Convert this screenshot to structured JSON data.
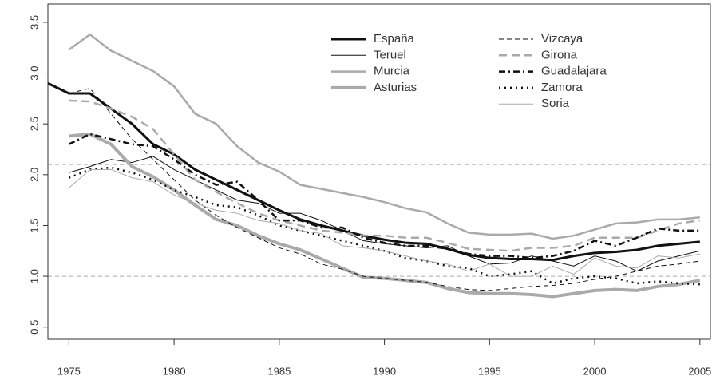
{
  "chart_data": {
    "type": "line",
    "x": [
      1974,
      1975,
      1976,
      1977,
      1978,
      1979,
      1980,
      1981,
      1982,
      1983,
      1984,
      1985,
      1986,
      1987,
      1988,
      1989,
      1990,
      1991,
      1992,
      1993,
      1994,
      1995,
      1996,
      1997,
      1998,
      1999,
      2000,
      2001,
      2002,
      2003,
      2004,
      2005
    ],
    "xlim": [
      1974,
      2005.5
    ],
    "xticks": [
      1975,
      1980,
      1985,
      1990,
      1995,
      2000,
      2005
    ],
    "ylim": [
      0.38,
      3.68
    ],
    "yticks": [
      {
        "value": 0.5,
        "label": "0.5"
      },
      {
        "value": 1,
        "label": "1.0"
      },
      {
        "value": 1.5,
        "label": "1.5"
      },
      {
        "value": 2,
        "label": "2.0"
      },
      {
        "value": 2.5,
        "label": "2.5"
      },
      {
        "value": 3,
        "label": "3.0"
      },
      {
        "value": 3.5,
        "label": "3.5"
      }
    ],
    "reference_lines": [
      1.0,
      2.1
    ],
    "series": [
      {
        "name": "España",
        "color": "#111111",
        "width": 3,
        "dash": "none",
        "values": [
          2.9,
          2.8,
          2.8,
          2.65,
          2.5,
          2.3,
          2.2,
          2.05,
          1.95,
          1.85,
          1.75,
          1.65,
          1.56,
          1.5,
          1.45,
          1.4,
          1.36,
          1.33,
          1.32,
          1.27,
          1.21,
          1.18,
          1.17,
          1.17,
          1.16,
          1.2,
          1.23,
          1.24,
          1.26,
          1.3,
          1.32,
          1.34
        ]
      },
      {
        "name": "Teruel",
        "color": "#111111",
        "width": 1,
        "dash": "none",
        "values": [
          null,
          2.02,
          2.08,
          2.15,
          2.12,
          2.18,
          2.05,
          1.95,
          1.85,
          1.75,
          1.72,
          1.62,
          1.62,
          1.55,
          1.45,
          1.35,
          1.32,
          1.3,
          1.28,
          1.3,
          1.2,
          1.12,
          1.13,
          1.2,
          1.15,
          1.1,
          1.2,
          1.15,
          1.05,
          1.15,
          1.2,
          1.25
        ]
      },
      {
        "name": "Murcia",
        "color": "#aaaaaa",
        "width": 2.5,
        "dash": "none",
        "values": [
          null,
          3.23,
          3.38,
          3.22,
          3.12,
          3.02,
          2.87,
          2.6,
          2.5,
          2.28,
          2.12,
          2.03,
          1.9,
          1.86,
          1.82,
          1.78,
          1.73,
          1.67,
          1.63,
          1.52,
          1.43,
          1.41,
          1.41,
          1.42,
          1.37,
          1.4,
          1.46,
          1.52,
          1.53,
          1.56,
          1.56,
          1.58
        ]
      },
      {
        "name": "Asturias",
        "color": "#aaaaaa",
        "width": 4,
        "dash": "none",
        "values": [
          null,
          2.38,
          2.4,
          2.3,
          2.08,
          1.98,
          1.85,
          1.7,
          1.56,
          1.5,
          1.4,
          1.32,
          1.26,
          1.17,
          1.08,
          0.99,
          0.98,
          0.96,
          0.94,
          0.88,
          0.84,
          0.83,
          0.83,
          0.82,
          0.8,
          0.83,
          0.86,
          0.87,
          0.86,
          0.9,
          0.92,
          0.96
        ]
      },
      {
        "name": "Vizcaya",
        "color": "#111111",
        "width": 1,
        "dash": "6,4",
        "values": [
          null,
          2.8,
          2.85,
          2.6,
          2.35,
          2.15,
          1.95,
          1.75,
          1.6,
          1.48,
          1.38,
          1.28,
          1.22,
          1.12,
          1.07,
          1.0,
          0.98,
          0.96,
          0.94,
          0.9,
          0.87,
          0.86,
          0.88,
          0.9,
          0.91,
          0.93,
          0.97,
          1.0,
          1.05,
          1.1,
          1.12,
          1.15
        ]
      },
      {
        "name": "Girona",
        "color": "#aaaaaa",
        "width": 2.5,
        "dash": "10,6",
        "values": [
          null,
          2.73,
          2.72,
          2.65,
          2.57,
          2.45,
          2.2,
          1.95,
          1.83,
          1.72,
          1.62,
          1.55,
          1.5,
          1.45,
          1.43,
          1.4,
          1.4,
          1.38,
          1.38,
          1.33,
          1.27,
          1.26,
          1.25,
          1.28,
          1.28,
          1.3,
          1.38,
          1.38,
          1.38,
          1.45,
          1.52,
          1.55
        ]
      },
      {
        "name": "Guadalajara",
        "color": "#111111",
        "width": 2.5,
        "dash": "8,4,2,4",
        "values": [
          null,
          2.3,
          2.4,
          2.35,
          2.3,
          2.28,
          2.15,
          2.0,
          1.9,
          1.93,
          1.75,
          1.55,
          1.55,
          1.48,
          1.48,
          1.38,
          1.33,
          1.3,
          1.3,
          1.27,
          1.22,
          1.2,
          1.2,
          1.18,
          1.2,
          1.25,
          1.35,
          1.3,
          1.38,
          1.47,
          1.45,
          1.45
        ]
      },
      {
        "name": "Zamora",
        "color": "#111111",
        "width": 2.5,
        "dash": "2,5",
        "values": [
          null,
          1.97,
          2.05,
          2.07,
          2.02,
          1.95,
          1.85,
          1.78,
          1.7,
          1.68,
          1.6,
          1.5,
          1.45,
          1.4,
          1.35,
          1.3,
          1.25,
          1.18,
          1.15,
          1.1,
          1.08,
          1.0,
          1.02,
          1.05,
          0.93,
          0.98,
          1.0,
          0.98,
          0.93,
          0.95,
          0.93,
          0.92
        ]
      },
      {
        "name": "Soria",
        "color": "#aaaaaa",
        "width": 1,
        "dash": "none",
        "values": [
          null,
          1.87,
          2.05,
          2.05,
          1.97,
          1.93,
          1.8,
          1.72,
          1.65,
          1.62,
          1.55,
          1.52,
          1.45,
          1.42,
          1.3,
          1.28,
          1.25,
          1.2,
          1.15,
          1.12,
          1.05,
          1.12,
          1.0,
          1.0,
          1.1,
          1.02,
          1.18,
          1.1,
          1.08,
          1.2,
          1.18,
          1.22
        ]
      }
    ]
  }
}
